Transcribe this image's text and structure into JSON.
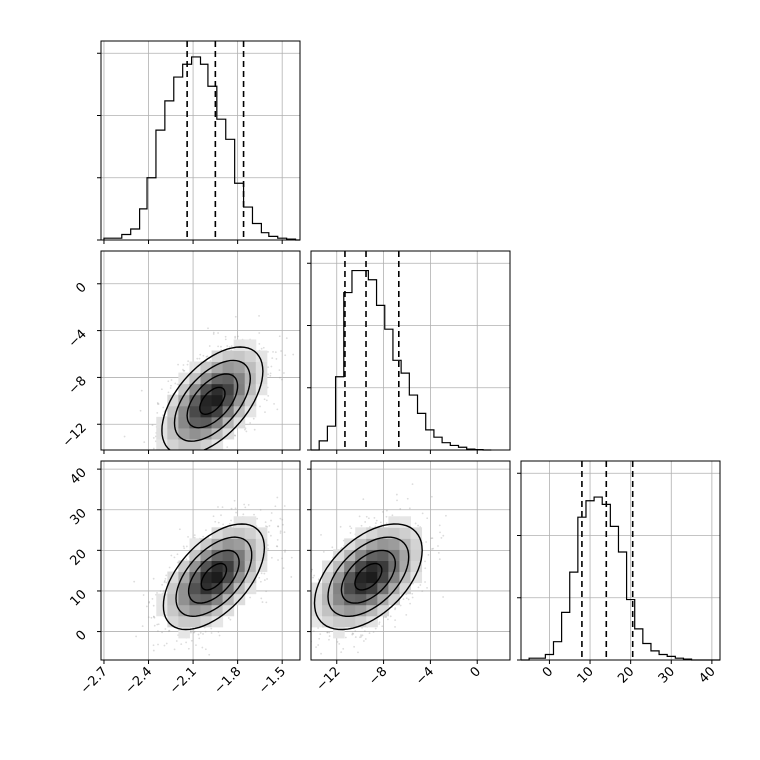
{
  "chart_data": {
    "type": "corner",
    "parameters": [
      {
        "axis_range": [
          -2.72,
          -1.38
        ],
        "ticks": [
          -2.7,
          -2.4,
          -2.1,
          -1.8,
          -1.5
        ],
        "tick_labels": [
          "−2.7",
          "−2.4",
          "−2.1",
          "−1.8",
          "−1.5"
        ]
      },
      {
        "axis_range": [
          -14.2,
          2.8
        ],
        "ticks": [
          -12,
          -8,
          -4,
          0
        ],
        "tick_labels": [
          "−12",
          "−8",
          "−4",
          "0"
        ]
      },
      {
        "axis_range": [
          -7,
          42
        ],
        "ticks": [
          0,
          10,
          20,
          30,
          40
        ],
        "tick_labels": [
          "0",
          "10",
          "20",
          "30",
          "40"
        ]
      }
    ],
    "marginals": [
      {
        "parameter": 0,
        "quantiles": [
          -2.14,
          -1.95,
          -1.76
        ],
        "bin_edges": [
          -2.7,
          -2.64,
          -2.58,
          -2.52,
          -2.46,
          -2.41,
          -2.35,
          -2.29,
          -2.23,
          -2.17,
          -2.11,
          -2.05,
          -2.0,
          -1.94,
          -1.88,
          -1.82,
          -1.76,
          -1.7,
          -1.64,
          -1.59,
          -1.53,
          -1.47,
          -1.41,
          -1.38
        ],
        "counts": [
          0.01,
          0.01,
          0.03,
          0.06,
          0.17,
          0.34,
          0.6,
          0.76,
          0.89,
          0.96,
          1.0,
          0.96,
          0.84,
          0.66,
          0.55,
          0.31,
          0.18,
          0.09,
          0.04,
          0.02,
          0.01,
          0.005,
          0.0
        ],
        "y_ticks_frac": [
          0.0,
          0.34,
          0.68,
          1.02
        ]
      },
      {
        "parameter": 1,
        "quantiles": [
          -11.3,
          -9.5,
          -6.7
        ],
        "bin_edges": [
          -14.2,
          -13.5,
          -12.8,
          -12.1,
          -11.4,
          -10.7,
          -10.0,
          -9.3,
          -8.6,
          -7.9,
          -7.2,
          -6.5,
          -5.8,
          -5.1,
          -4.4,
          -3.7,
          -3.0,
          -2.3,
          -1.6,
          -0.9,
          -0.2,
          0.5,
          1.2
        ],
        "counts": [
          0.0,
          0.05,
          0.13,
          0.4,
          0.86,
          0.98,
          0.98,
          0.93,
          0.79,
          0.66,
          0.49,
          0.42,
          0.3,
          0.2,
          0.11,
          0.07,
          0.04,
          0.025,
          0.015,
          0.005,
          0.002,
          0.0
        ],
        "y_ticks_frac": [
          0.0,
          0.34,
          0.68,
          1.02
        ]
      },
      {
        "parameter": 2,
        "quantiles": [
          8,
          14,
          20.5
        ],
        "bin_edges": [
          -7,
          -5,
          -3,
          -1,
          1,
          3,
          5,
          7,
          9,
          11,
          13,
          15,
          17,
          19,
          21,
          23,
          25,
          27,
          29,
          31,
          33,
          35,
          37,
          42
        ],
        "counts": [
          0.0,
          0.01,
          0.01,
          0.03,
          0.1,
          0.26,
          0.48,
          0.78,
          0.87,
          0.89,
          0.85,
          0.73,
          0.59,
          0.33,
          0.17,
          0.09,
          0.05,
          0.03,
          0.02,
          0.01,
          0.005,
          0.0,
          0.0
        ],
        "y_ticks_frac": [
          0.0,
          0.34,
          0.68,
          1.02
        ]
      }
    ],
    "joints": [
      {
        "x_param": 0,
        "y_param": 1,
        "center": [
          -1.97,
          -10.0
        ],
        "sd": [
          0.17,
          2.3
        ],
        "rho": 0.55
      },
      {
        "x_param": 0,
        "y_param": 2,
        "center": [
          -1.96,
          13.5
        ],
        "sd": [
          0.17,
          6.5
        ],
        "rho": 0.55
      },
      {
        "x_param": 1,
        "y_param": 2,
        "center": [
          -9.3,
          13.5
        ],
        "sd": [
          2.3,
          6.5
        ],
        "rho": 0.5
      }
    ],
    "contour_levels_sigma": [
      0.5,
      1.0,
      1.5,
      2.0
    ],
    "grid": true,
    "title": "",
    "xlabel": "",
    "ylabel": ""
  }
}
